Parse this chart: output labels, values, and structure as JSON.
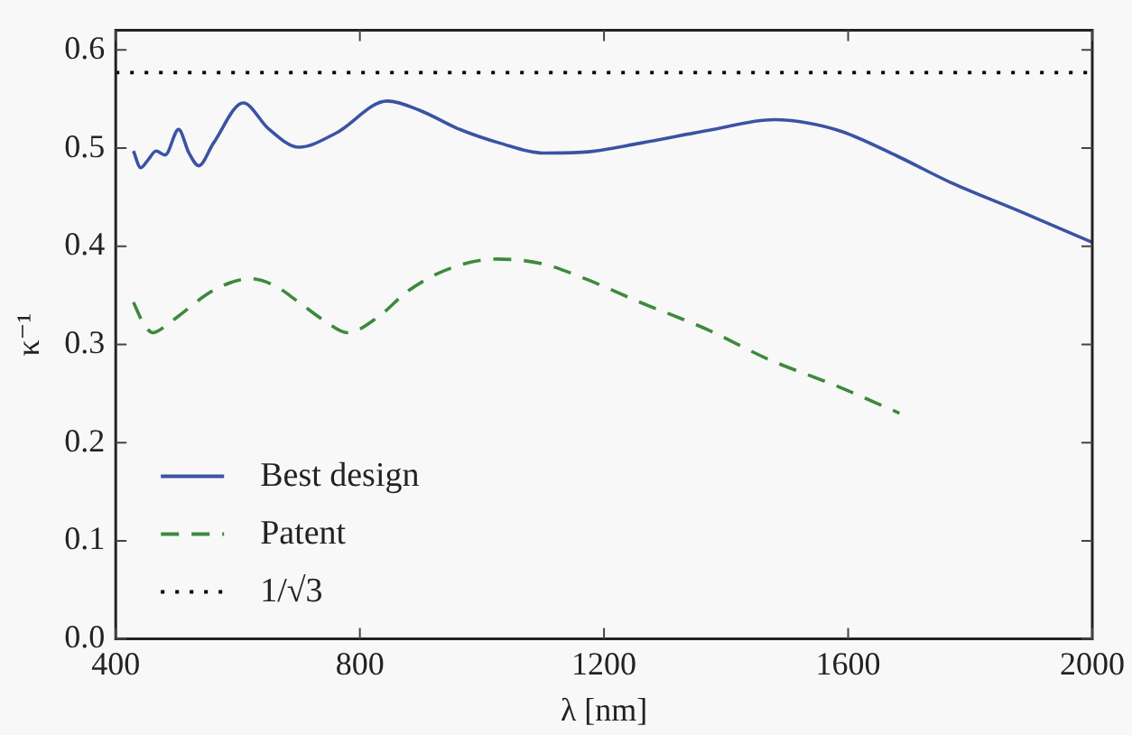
{
  "chart_data": {
    "type": "line",
    "xlabel": "λ [nm]",
    "ylabel": "κ⁻¹",
    "xlim": [
      400,
      2000
    ],
    "xticks": [
      400,
      800,
      1200,
      1600,
      2000
    ],
    "ylim": [
      0,
      0.62
    ],
    "yticks": [
      {
        "value": 0,
        "label": "0.0"
      },
      0.1,
      0.2,
      0.3,
      0.4,
      0.5,
      0.6
    ],
    "grid": false,
    "legend": "bottom left",
    "marker": "none",
    "series": [
      {
        "name": "Best design",
        "color": "#3a53a4",
        "line_style": "solid",
        "x": [
          429,
          441,
          453,
          466,
          481,
          503,
          520,
          536,
          560,
          609,
          650,
          700,
          760,
          845,
          900,
          960,
          1030,
          1100,
          1169,
          1259,
          1370,
          1479,
          1530,
          1589,
          1680,
          1768,
          1880,
          2000
        ],
        "values": [
          0.497,
          0.48,
          0.488,
          0.497,
          0.493,
          0.519,
          0.495,
          0.482,
          0.505,
          0.546,
          0.52,
          0.501,
          0.515,
          0.548,
          0.538,
          0.52,
          0.505,
          0.495,
          0.496,
          0.505,
          0.518,
          0.529,
          0.526,
          0.517,
          0.492,
          0.465,
          0.436,
          0.404
        ]
      },
      {
        "name": "Patent",
        "color": "#3c8a3c",
        "line_style": "dashed",
        "x": [
          429,
          445,
          461,
          480,
          501,
          560,
          620,
          660,
          700,
          740,
          780,
          830,
          880,
          950,
          1025,
          1100,
          1169,
          1259,
          1370,
          1469,
          1580,
          1684
        ],
        "values": [
          0.343,
          0.322,
          0.312,
          0.318,
          0.328,
          0.355,
          0.367,
          0.36,
          0.343,
          0.325,
          0.312,
          0.328,
          0.355,
          0.378,
          0.387,
          0.382,
          0.367,
          0.343,
          0.315,
          0.285,
          0.258,
          0.23
        ]
      },
      {
        "name": "1/√3",
        "color": "#000000",
        "line_style": "dotted",
        "x": [
          400,
          2000
        ],
        "values": [
          0.577,
          0.577
        ]
      }
    ]
  }
}
